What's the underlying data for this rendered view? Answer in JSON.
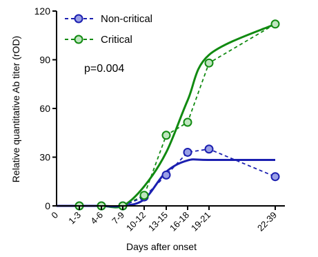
{
  "chart_data": {
    "type": "line",
    "xlabel": "Days after onset",
    "ylabel": "Relative quantitative Ab titer (rOD)",
    "ylim": [
      0,
      120
    ],
    "yticks": [
      "0",
      "30",
      "60",
      "90",
      "120"
    ],
    "x_origin_label": "0",
    "categories": [
      "1-3",
      "4-6",
      "7-9",
      "10-12",
      "13-15",
      "16-18",
      "19-21",
      "22-39"
    ],
    "annotation": "p=0.004",
    "legend_position": "top-left",
    "series": [
      {
        "name": "Non-critical",
        "color": "#1b1fb0",
        "fill": "#9aa0e6",
        "values": [
          0,
          0,
          0,
          5.5,
          19,
          33,
          35,
          18
        ],
        "fit": [
          0,
          0,
          0,
          4,
          21,
          28,
          28.3,
          28.3
        ]
      },
      {
        "name": "Critical",
        "color": "#118a11",
        "fill": "#bfe6bf",
        "values": [
          0,
          0,
          0,
          6.5,
          43.5,
          51.5,
          88,
          112
        ],
        "fit": [
          0,
          0,
          0,
          12,
          33,
          65,
          93,
          112
        ]
      }
    ]
  }
}
